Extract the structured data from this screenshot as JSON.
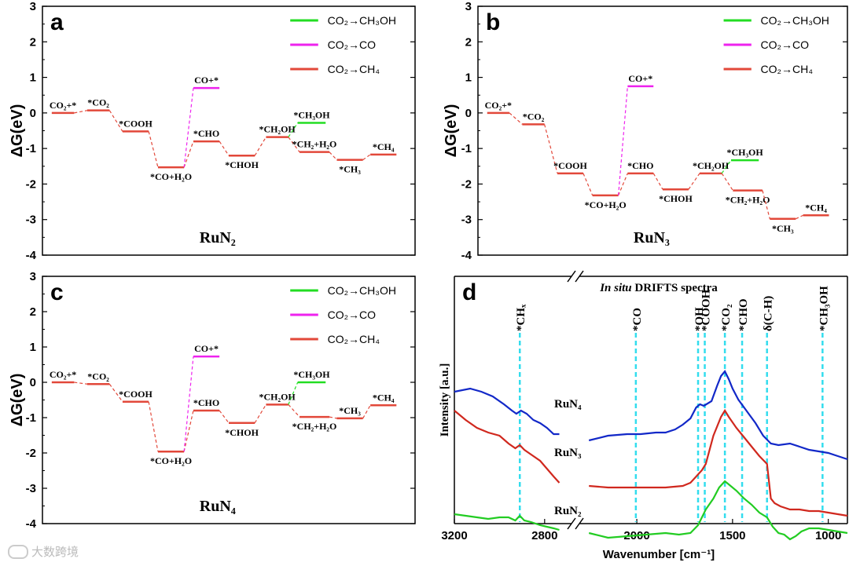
{
  "watermark": "大数跨境",
  "chart_data": [
    {
      "panel": "a",
      "type": "line",
      "material": "RuN₂",
      "ylabel": "ΔG(eV)",
      "ylim": [
        -4,
        3
      ],
      "yticks": [
        -4,
        -3,
        -2,
        -1,
        0,
        1,
        2,
        3
      ],
      "legend": {
        "position": "top-right",
        "entries": [
          {
            "name": "CO₂→CH₃OH",
            "color": "#22dd22"
          },
          {
            "name": "CO₂→CO",
            "color": "#ee22ee"
          },
          {
            "name": "CO₂→CH₄",
            "color": "#e2483a"
          }
        ]
      },
      "steps": [
        {
          "label": "CO₂+*",
          "energy": 0.0,
          "label_pos": "above",
          "path": "CH4"
        },
        {
          "label": "*CO₂",
          "energy": 0.07,
          "label_pos": "above",
          "path": "CH4"
        },
        {
          "label": "*COOH",
          "energy": -0.52,
          "label_pos": "above",
          "path": "CH4"
        },
        {
          "label": "*CO+H₂O",
          "energy": -1.53,
          "label_pos": "below",
          "path": "CH4"
        },
        {
          "label": "*CHO",
          "energy": -0.8,
          "label_pos": "above",
          "path": "CH4"
        },
        {
          "label": "*CHOH",
          "energy": -1.2,
          "label_pos": "below",
          "path": "CH4"
        },
        {
          "label": "*CH₂OH",
          "energy": -0.68,
          "label_pos": "above",
          "path": "CH4"
        },
        {
          "label": "*CH₂+H₂O",
          "energy": -1.1,
          "label_pos": "above",
          "path": "CH4"
        },
        {
          "label": "*CH₃",
          "energy": -1.32,
          "label_pos": "below",
          "path": "CH4"
        },
        {
          "label": "*CH₄",
          "energy": -1.17,
          "label_pos": "above",
          "path": "CH4"
        }
      ],
      "branch_co": {
        "label": "CO+*",
        "energy": 0.7,
        "from_step": 3
      },
      "branch_ch3oh": {
        "label": "*CH₃OH",
        "energy": -0.28,
        "from_step": 6
      }
    },
    {
      "panel": "b",
      "type": "line",
      "material": "RuN₃",
      "ylabel": "ΔG(eV)",
      "ylim": [
        -4,
        3
      ],
      "yticks": [
        -4,
        -3,
        -2,
        -1,
        0,
        1,
        2,
        3
      ],
      "legend": {
        "position": "top-right",
        "entries": [
          {
            "name": "CO₂→CH₃OH",
            "color": "#22dd22"
          },
          {
            "name": "CO₂→CO",
            "color": "#ee22ee"
          },
          {
            "name": "CO₂→CH₄",
            "color": "#e2483a"
          }
        ]
      },
      "steps": [
        {
          "label": "CO₂+*",
          "energy": 0.0,
          "label_pos": "above",
          "path": "CH4"
        },
        {
          "label": "*CO₂",
          "energy": -0.32,
          "label_pos": "above",
          "path": "CH4"
        },
        {
          "label": "*COOH",
          "energy": -1.7,
          "label_pos": "above",
          "path": "CH4"
        },
        {
          "label": "*CO+H₂O",
          "energy": -2.32,
          "label_pos": "below",
          "path": "CH4"
        },
        {
          "label": "*CHO",
          "energy": -1.7,
          "label_pos": "above",
          "path": "CH4"
        },
        {
          "label": "*CHOH",
          "energy": -2.15,
          "label_pos": "below",
          "path": "CH4"
        },
        {
          "label": "*CH₂OH",
          "energy": -1.7,
          "label_pos": "above",
          "path": "CH4"
        },
        {
          "label": "*CH₂+H₂O",
          "energy": -2.18,
          "label_pos": "below",
          "path": "CH4"
        },
        {
          "label": "*CH₃",
          "energy": -2.98,
          "label_pos": "below",
          "path": "CH4"
        },
        {
          "label": "*CH₄",
          "energy": -2.88,
          "label_pos": "above",
          "path": "CH4"
        }
      ],
      "branch_co": {
        "label": "CO+*",
        "energy": 0.75,
        "from_step": 3
      },
      "branch_ch3oh": {
        "label": "*CH₃OH",
        "energy": -1.33,
        "from_step": 6
      }
    },
    {
      "panel": "c",
      "type": "line",
      "material": "RuN₄",
      "ylabel": "ΔG(eV)",
      "ylim": [
        -4,
        3
      ],
      "yticks": [
        -4,
        -3,
        -2,
        -1,
        0,
        1,
        2,
        3
      ],
      "legend": {
        "position": "top-right",
        "entries": [
          {
            "name": "CO₂→CH₃OH",
            "color": "#22dd22"
          },
          {
            "name": "CO₂→CO",
            "color": "#ee22ee"
          },
          {
            "name": "CO₂→CH₄",
            "color": "#e2483a"
          }
        ]
      },
      "steps": [
        {
          "label": "CO₂+*",
          "energy": 0.0,
          "label_pos": "above",
          "path": "CH4"
        },
        {
          "label": "*CO₂",
          "energy": -0.05,
          "label_pos": "above",
          "path": "CH4"
        },
        {
          "label": "*COOH",
          "energy": -0.55,
          "label_pos": "above",
          "path": "CH4"
        },
        {
          "label": "*CO+H₂O",
          "energy": -1.96,
          "label_pos": "below",
          "path": "CH4"
        },
        {
          "label": "*CHO",
          "energy": -0.8,
          "label_pos": "above",
          "path": "CH4"
        },
        {
          "label": "*CHOH",
          "energy": -1.15,
          "label_pos": "below",
          "path": "CH4"
        },
        {
          "label": "*CH₂OH",
          "energy": -0.63,
          "label_pos": "above",
          "path": "CH4"
        },
        {
          "label": "*CH₂+H₂O",
          "energy": -0.98,
          "label_pos": "below",
          "path": "CH4"
        },
        {
          "label": "*CH₃",
          "energy": -1.02,
          "label_pos": "above",
          "path": "CH4"
        },
        {
          "label": "*CH₄",
          "energy": -0.65,
          "label_pos": "above",
          "path": "CH4"
        }
      ],
      "branch_co": {
        "label": "CO+*",
        "energy": 0.73,
        "from_step": 3
      },
      "branch_ch3oh": {
        "label": "*CH₃OH",
        "energy": 0.0,
        "from_step": 6
      }
    },
    {
      "panel": "d",
      "type": "line",
      "title_italic": "In situ",
      "title_rest": " DRIFTS spectra",
      "xlabel": "Wavenumber [cm⁻¹]",
      "ylabel": "Intensity [a.u.]",
      "x_ticks": [
        3200,
        2800,
        2000,
        1500,
        1000
      ],
      "x_break": [
        2700,
        2300
      ],
      "xlim": [
        3200,
        900
      ],
      "markers": [
        {
          "label": "*CHₓ",
          "x": 2910
        },
        {
          "label": "*CO",
          "x": 2005
        },
        {
          "label": "*OH",
          "x": 1680
        },
        {
          "label": "*COOH",
          "x": 1645
        },
        {
          "label": "*CO₂",
          "x": 1540
        },
        {
          "label": "*CHO",
          "x": 1450
        },
        {
          "label": "δ(C-H)",
          "x": 1320
        },
        {
          "label": "*CH₃OH",
          "x": 1030
        }
      ],
      "series": [
        {
          "name": "RuN₄",
          "color": "#1228c8",
          "x": [
            3200,
            3130,
            3080,
            3030,
            2980,
            2945,
            2925,
            2905,
            2880,
            2850,
            2820,
            2790,
            2760,
            2735,
            2250,
            2150,
            2050,
            1980,
            1900,
            1850,
            1800,
            1760,
            1720,
            1690,
            1670,
            1650,
            1610,
            1580,
            1560,
            1540,
            1520,
            1500,
            1470,
            1440,
            1410,
            1380,
            1340,
            1300,
            1260,
            1200,
            1150,
            1100,
            1050,
            1000,
            950,
            900
          ],
          "y": [
            0.78,
            0.8,
            0.78,
            0.75,
            0.7,
            0.66,
            0.64,
            0.66,
            0.64,
            0.6,
            0.58,
            0.55,
            0.51,
            0.51,
            0.47,
            0.5,
            0.51,
            0.51,
            0.52,
            0.52,
            0.54,
            0.57,
            0.61,
            0.68,
            0.7,
            0.69,
            0.72,
            0.82,
            0.88,
            0.91,
            0.86,
            0.8,
            0.73,
            0.68,
            0.63,
            0.58,
            0.5,
            0.45,
            0.44,
            0.45,
            0.43,
            0.41,
            0.4,
            0.39,
            0.37,
            0.35
          ]
        },
        {
          "name": "RuN₃",
          "color": "#d0281e",
          "x": [
            3200,
            3150,
            3100,
            3050,
            3000,
            2960,
            2930,
            2910,
            2890,
            2860,
            2820,
            2790,
            2760,
            2735,
            2250,
            2150,
            2050,
            1950,
            1850,
            1760,
            1720,
            1690,
            1660,
            1640,
            1600,
            1560,
            1540,
            1520,
            1480,
            1440,
            1400,
            1360,
            1320,
            1300,
            1280,
            1250,
            1200,
            1150,
            1100,
            1050,
            1000,
            950,
            900
          ],
          "y": [
            0.66,
            0.6,
            0.55,
            0.52,
            0.5,
            0.45,
            0.42,
            0.44,
            0.41,
            0.38,
            0.34,
            0.29,
            0.24,
            0.2,
            0.18,
            0.17,
            0.17,
            0.17,
            0.17,
            0.18,
            0.2,
            0.24,
            0.28,
            0.32,
            0.5,
            0.62,
            0.66,
            0.62,
            0.55,
            0.49,
            0.43,
            0.37,
            0.32,
            0.1,
            0.07,
            0.05,
            0.03,
            0.03,
            0.02,
            0.02,
            0.01,
            0.0,
            -0.01
          ]
        },
        {
          "name": "RuN₂",
          "color": "#22cc22",
          "x": [
            3200,
            3150,
            3100,
            3050,
            3000,
            2960,
            2930,
            2910,
            2890,
            2860,
            2820,
            2790,
            2760,
            2735,
            2250,
            2150,
            2050,
            1950,
            1850,
            1780,
            1720,
            1680,
            1640,
            1600,
            1570,
            1540,
            1520,
            1480,
            1440,
            1400,
            1360,
            1320,
            1290,
            1260,
            1230,
            1200,
            1170,
            1140,
            1100,
            1050,
            1000,
            950,
            900
          ],
          "y": [
            0.0,
            -0.01,
            -0.02,
            -0.03,
            -0.02,
            -0.02,
            -0.04,
            -0.01,
            -0.04,
            -0.05,
            -0.07,
            -0.08,
            -0.09,
            -0.1,
            -0.12,
            -0.15,
            -0.14,
            -0.13,
            -0.12,
            -0.13,
            -0.12,
            -0.07,
            0.03,
            0.1,
            0.17,
            0.21,
            0.19,
            0.15,
            0.1,
            0.06,
            0.01,
            -0.02,
            -0.08,
            -0.12,
            -0.13,
            -0.16,
            -0.14,
            -0.11,
            -0.09,
            -0.09,
            -0.1,
            -0.11,
            -0.12
          ]
        }
      ]
    }
  ]
}
